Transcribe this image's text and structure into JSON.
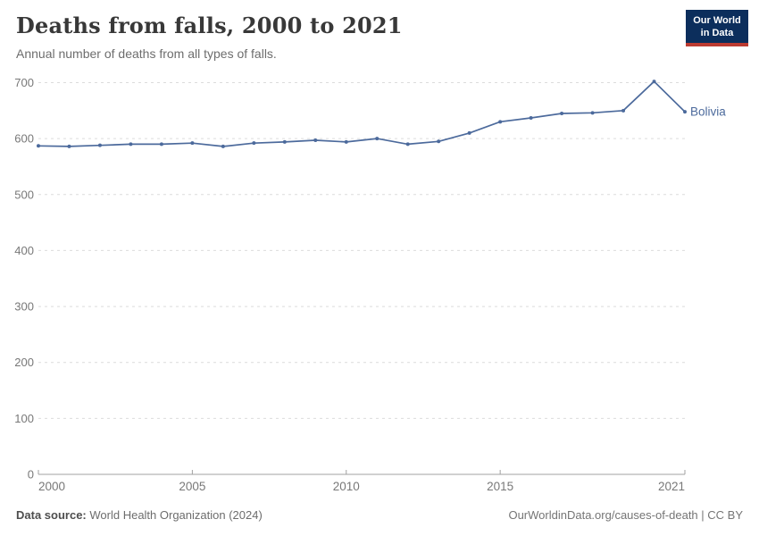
{
  "header": {
    "title": "Deaths from falls, 2000 to 2021",
    "subtitle": "Annual number of deaths from all types of falls."
  },
  "logo": {
    "line1": "Our World",
    "line2": "in Data",
    "bg_color": "#0c2e5c",
    "bar_color": "#bc3b31",
    "text_color": "#ffffff"
  },
  "chart_data": {
    "type": "line",
    "title": "Deaths from falls, 2000 to 2021",
    "xlabel": "",
    "ylabel": "",
    "x": [
      2000,
      2001,
      2002,
      2003,
      2004,
      2005,
      2006,
      2007,
      2008,
      2009,
      2010,
      2011,
      2012,
      2013,
      2014,
      2015,
      2016,
      2017,
      2018,
      2019,
      2020,
      2021
    ],
    "series": [
      {
        "name": "Bolivia",
        "color": "#4c6a9c",
        "values": [
          587,
          586,
          588,
          590,
          590,
          592,
          586,
          592,
          594,
          597,
          594,
          600,
          590,
          595,
          610,
          630,
          637,
          645,
          646,
          650,
          702,
          648
        ]
      }
    ],
    "xlim": [
      2000,
      2021
    ],
    "ylim": [
      0,
      700
    ],
    "x_ticks": [
      2000,
      2005,
      2010,
      2015,
      2021
    ],
    "y_ticks": [
      0,
      100,
      200,
      300,
      400,
      500,
      600,
      700
    ],
    "grid": "horizontal-dashed",
    "legend_position": "end-of-line-label",
    "axis_color": "#a1a1a1",
    "grid_color": "#dcdcdc",
    "tick_label_color": "#787878"
  },
  "footer": {
    "source_label": "Data source:",
    "source_value": "World Health Organization (2024)",
    "link": "OurWorldinData.org/causes-of-death | CC BY"
  }
}
